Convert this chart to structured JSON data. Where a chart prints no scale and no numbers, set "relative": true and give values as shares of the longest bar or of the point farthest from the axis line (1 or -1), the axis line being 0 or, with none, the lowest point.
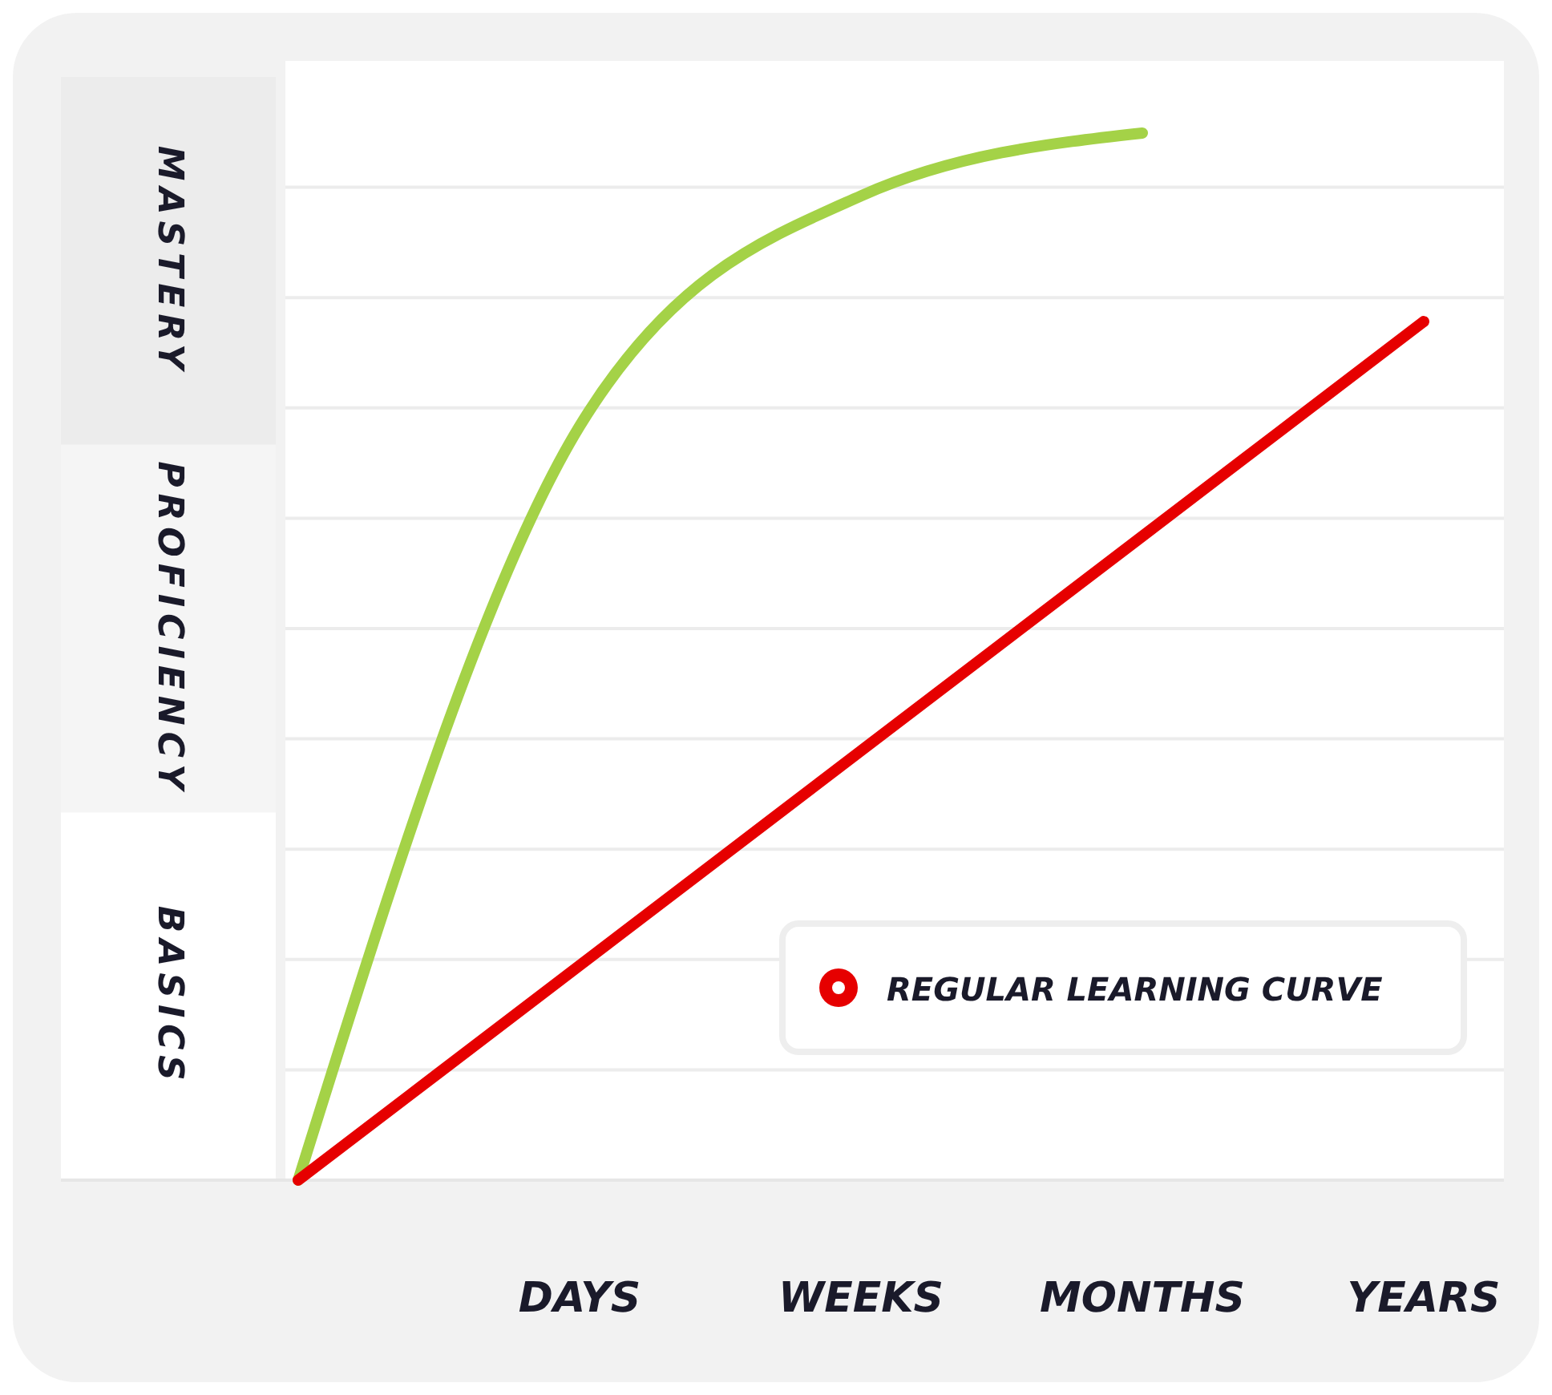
{
  "chart_data": {
    "type": "line",
    "relative": true,
    "categories": [
      null,
      "DAYS",
      "WEEKS",
      "MONTHS",
      "YEARS"
    ],
    "series": [
      {
        "color": "#a4d247",
        "values": [
          0,
          0.72,
          0.94,
          1,
          null
        ]
      },
      {
        "name": "REGULAR LEARNING CURVE",
        "color": "#e60000",
        "values": [
          0,
          0.205,
          0.41,
          0.615,
          0.82
        ]
      }
    ],
    "annotations": [
      "MASTERY",
      "PROFICIENCY",
      "BASICS"
    ],
    "grid": "y",
    "legend": "bottom right",
    "line_style": "solid"
  }
}
